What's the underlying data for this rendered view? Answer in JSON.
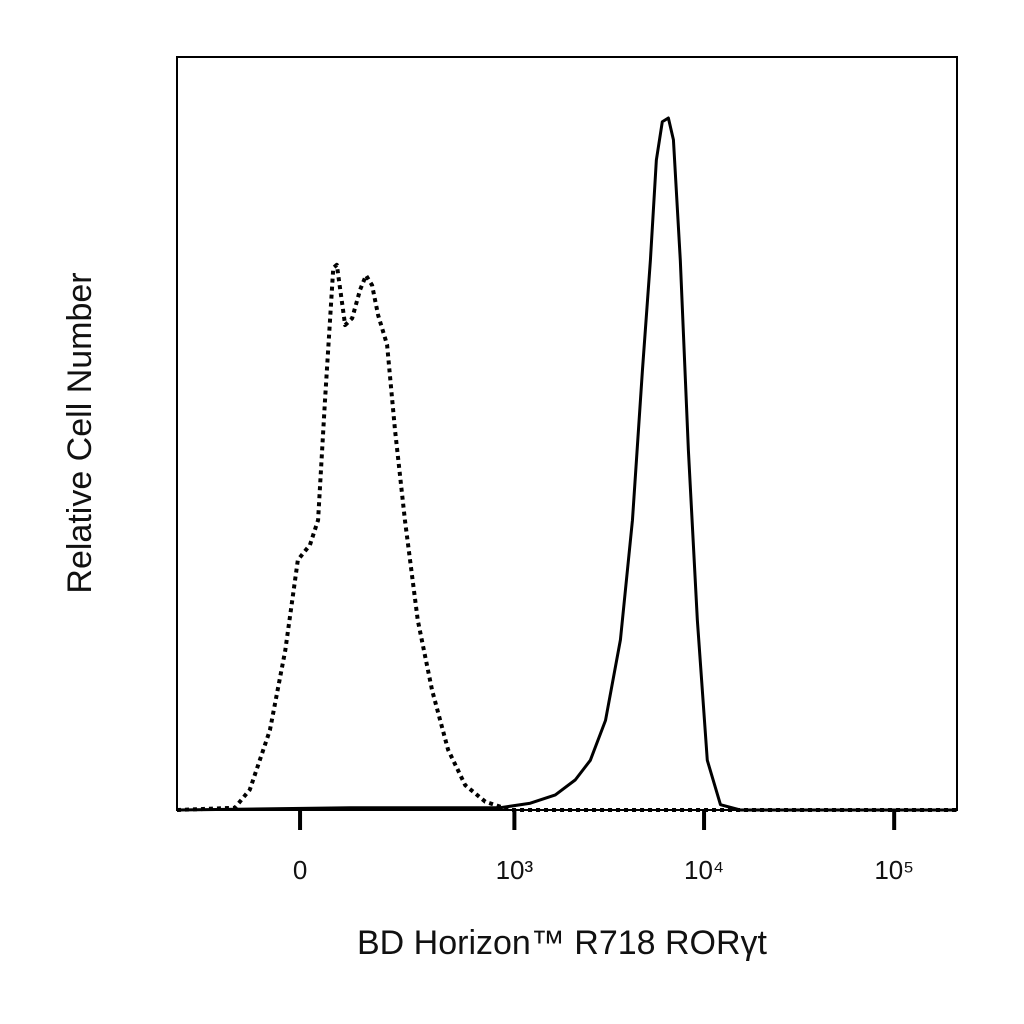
{
  "chart_data": {
    "type": "line",
    "xlabel": "BD Horizon™ R718 RORγt",
    "ylabel": "Relative Cell Number",
    "xscale": "biexponential",
    "xlim": [
      -316,
      214000
    ],
    "ylim": [
      0,
      100
    ],
    "xticks": [
      0,
      {
        "value": 1000,
        "label": "10³"
      },
      {
        "value": 10000,
        "label": "10⁴"
      },
      {
        "value": 100000,
        "label": "10⁵"
      }
    ],
    "series": [
      {
        "color": "#000000",
        "dash": "dotted",
        "x": [
          -316,
          -131,
          -97,
          -56,
          -27,
          -4,
          18,
          33,
          46,
          62,
          69,
          86,
          101,
          119,
          133,
          148,
          164,
          189,
          213,
          246,
          294,
          356,
          438,
          544,
          699,
          951,
          214000
        ],
        "values": [
          0,
          0.3,
          2.7,
          10.6,
          21.2,
          33.2,
          35.2,
          38.5,
          54.4,
          72.0,
          72.4,
          64.4,
          65.3,
          69.1,
          71.0,
          69.7,
          65.7,
          61.8,
          50.5,
          38.5,
          25.2,
          15.9,
          8.0,
          3.3,
          1.1,
          0,
          0
        ]
      },
      {
        "color": "#000000",
        "dash": "solid",
        "x": [
          -316,
          97,
          396,
          840,
          1214,
          1647,
          2100,
          2520,
          3030,
          3630,
          4200,
          4740,
          5220,
          5610,
          6030,
          6490,
          6900,
          7500,
          8270,
          9220,
          10400,
          12200,
          15500,
          214000
        ],
        "values": [
          0,
          0.3,
          0.3,
          0.3,
          0.9,
          2.0,
          4.0,
          6.6,
          11.9,
          22.6,
          38.5,
          58.4,
          73.0,
          86.3,
          91.4,
          91.9,
          89.0,
          73.0,
          47.8,
          25.2,
          6.6,
          0.7,
          0,
          0
        ]
      }
    ]
  }
}
